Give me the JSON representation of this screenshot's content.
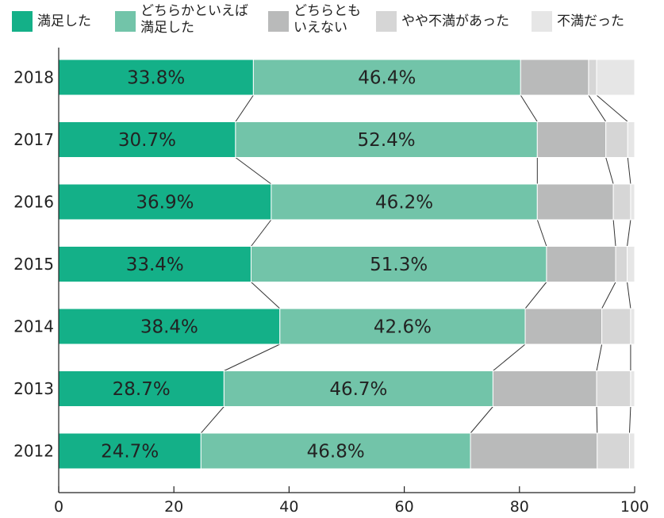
{
  "chart_data": {
    "type": "bar",
    "orientation": "horizontal",
    "stacked": true,
    "title": "",
    "xlabel": "",
    "ylabel": "",
    "xlim": [
      0,
      100
    ],
    "x_ticks": [
      0,
      20,
      40,
      60,
      80,
      100
    ],
    "grid": false,
    "legend_position": "top",
    "categories": [
      "2018",
      "2017",
      "2016",
      "2015",
      "2014",
      "2013",
      "2012"
    ],
    "series": [
      {
        "name": "満足した",
        "color": "#14b088",
        "values": [
          33.8,
          30.7,
          36.9,
          33.4,
          38.4,
          28.7,
          24.7
        ],
        "labels": [
          "33.8%",
          "30.7%",
          "36.9%",
          "33.4%",
          "38.4%",
          "28.7%",
          "24.7%"
        ]
      },
      {
        "name": "どちらかといえば\n満足した",
        "color": "#72c4a9",
        "values": [
          46.4,
          52.4,
          46.2,
          51.3,
          42.6,
          46.7,
          46.8
        ],
        "labels": [
          "46.4%",
          "52.4%",
          "46.2%",
          "51.3%",
          "42.6%",
          "46.7%",
          "46.8%"
        ]
      },
      {
        "name": "どちらとも\nいえない",
        "color": "#b9baba",
        "values": [
          11.8,
          11.9,
          13.2,
          12.0,
          13.3,
          18.0,
          22.0
        ],
        "labels": []
      },
      {
        "name": "やや不満があった",
        "color": "#d6d6d6",
        "values": [
          1.4,
          3.8,
          3.0,
          2.0,
          5.0,
          5.9,
          5.6
        ],
        "labels": []
      },
      {
        "name": "不満だった",
        "color": "#e6e6e6",
        "values": [
          6.6,
          1.2,
          0.7,
          1.3,
          0.7,
          0.7,
          0.9
        ],
        "labels": []
      }
    ],
    "connector_lines": true
  }
}
